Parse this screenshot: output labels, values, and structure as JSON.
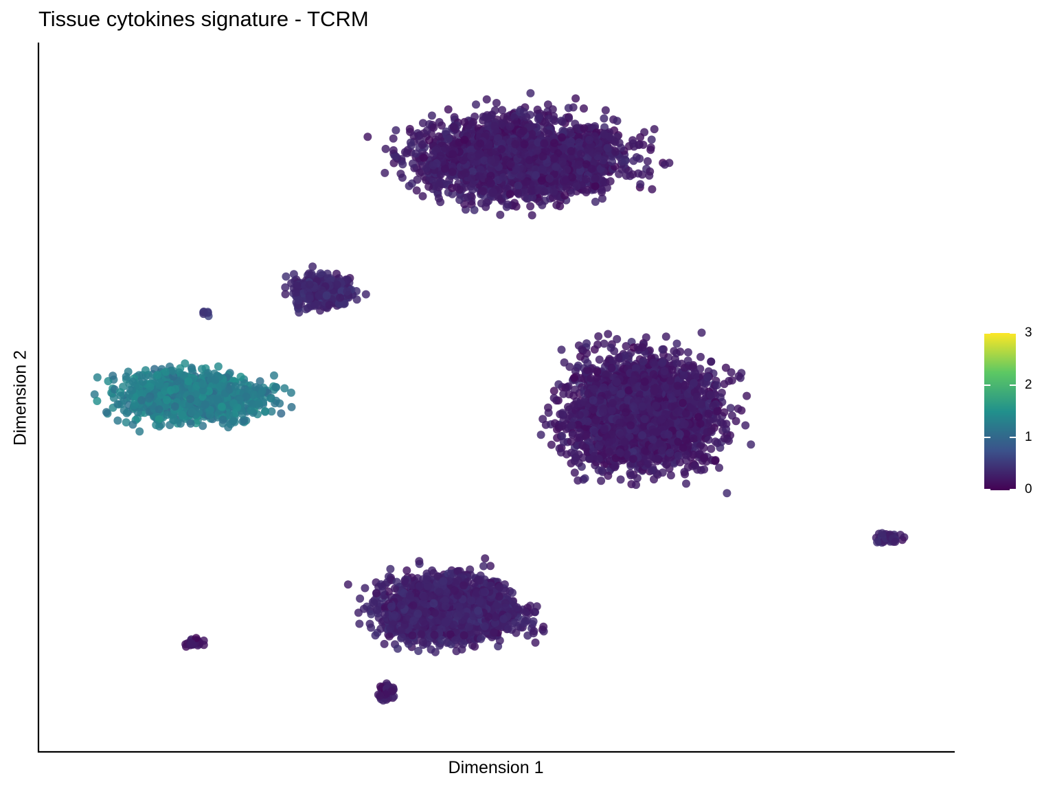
{
  "chart_data": {
    "type": "scatter",
    "title": "Tissue cytokines signature - TCRM",
    "xlabel": "Dimension 1",
    "ylabel": "Dimension 2",
    "grid": false,
    "axis_ticks_shown": false,
    "color_scale": {
      "palette": "viridis",
      "range": [
        0,
        3
      ],
      "ticks": [
        "0",
        "1",
        "2",
        "3"
      ],
      "colors": [
        "#440154",
        "#3b528b",
        "#21908c",
        "#5dc863",
        "#fde725"
      ],
      "legend_position": "right"
    },
    "clusters": [
      {
        "cx": 0.53,
        "cy": 0.84,
        "mean_value": 0.25
      },
      {
        "cx": 0.66,
        "cy": 0.48,
        "mean_value": 0.25
      },
      {
        "cx": 0.17,
        "cy": 0.5,
        "mean_value": 1.3
      },
      {
        "cx": 0.31,
        "cy": 0.65,
        "mean_value": 0.35
      },
      {
        "cx": 0.45,
        "cy": 0.2,
        "mean_value": 0.3
      },
      {
        "cx": 0.93,
        "cy": 0.3,
        "mean_value": 0.3
      },
      {
        "cx": 0.38,
        "cy": 0.08,
        "mean_value": 0.2
      },
      {
        "cx": 0.17,
        "cy": 0.15,
        "mean_value": 0.2
      },
      {
        "cx": 0.18,
        "cy": 0.62,
        "mean_value": 0.5
      }
    ]
  }
}
